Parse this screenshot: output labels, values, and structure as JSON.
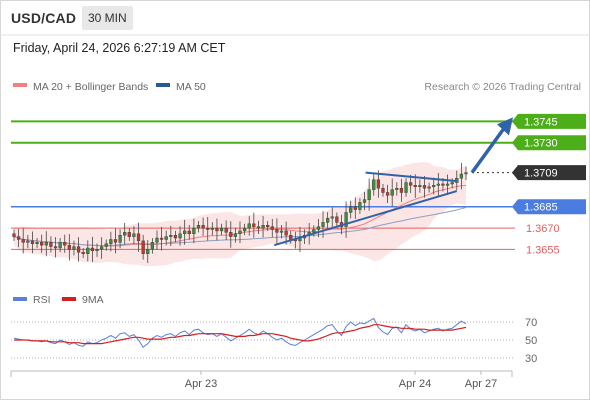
{
  "header": {
    "symbol": "USD/CAD",
    "timeframe": "30 MIN",
    "datetime": "Friday, April 24, 2026 6:27:19 AM CET"
  },
  "legend": {
    "ma20_bb": "MA 20 + Bollinger Bands",
    "ma50": "MA 50",
    "ma20_color": "#f08080",
    "ma50_color": "#2b5797"
  },
  "copyright": "Research © 2026 Trading Central",
  "colors": {
    "resistance": "#4caf1a",
    "support_blue": "#4a7ddf",
    "support_red": "#e06060",
    "current": "#333333",
    "arrow": "#2f62a8",
    "candle_up": "#3a8f3a",
    "candle_down": "#c0392b",
    "bollinger_fill": "#fbe0e0"
  },
  "chart_data": {
    "type": "candlestick",
    "ylim": [
      1.363,
      1.376
    ],
    "x_ticks": [
      "Apr 23",
      "Apr 24",
      "Apr 27"
    ],
    "levels": [
      {
        "value": 1.3745,
        "label": "1.3745",
        "kind": "resistance"
      },
      {
        "value": 1.373,
        "label": "1.3730",
        "kind": "resistance"
      },
      {
        "value": 1.3709,
        "label": "1.3709",
        "kind": "current"
      },
      {
        "value": 1.3685,
        "label": "1.3685",
        "kind": "support"
      },
      {
        "value": 1.367,
        "label": "1.3670",
        "kind": "support-red"
      },
      {
        "value": 1.3655,
        "label": "1.3655",
        "kind": "support-red"
      }
    ],
    "closes": [
      1.3664,
      1.3662,
      1.366,
      1.3661,
      1.3659,
      1.366,
      1.3658,
      1.366,
      1.3657,
      1.3656,
      1.366,
      1.3658,
      1.3655,
      1.3657,
      1.3653,
      1.3652,
      1.3656,
      1.3654,
      1.3655,
      1.3657,
      1.3659,
      1.3662,
      1.366,
      1.3665,
      1.3667,
      1.3664,
      1.3666,
      1.3661,
      1.3652,
      1.3655,
      1.366,
      1.3663,
      1.3662,
      1.3664,
      1.3665,
      1.3663,
      1.3666,
      1.3668,
      1.3666,
      1.367,
      1.3672,
      1.367,
      1.3669,
      1.367,
      1.3668,
      1.367,
      1.3667,
      1.3664,
      1.3666,
      1.3668,
      1.367,
      1.3673,
      1.3671,
      1.367,
      1.3672,
      1.3671,
      1.3669,
      1.3667,
      1.3668,
      1.3665,
      1.3662,
      1.3661,
      1.3663,
      1.3665,
      1.3667,
      1.3669,
      1.3671,
      1.3674,
      1.3677,
      1.3678,
      1.3674,
      1.3671,
      1.3681,
      1.3685,
      1.3683,
      1.3688,
      1.369,
      1.3697,
      1.3704,
      1.3698,
      1.3695,
      1.3693,
      1.3697,
      1.3698,
      1.3695,
      1.3702,
      1.37,
      1.3699,
      1.37,
      1.3698,
      1.3699,
      1.37,
      1.3701,
      1.37,
      1.3701,
      1.3702,
      1.3705,
      1.3708,
      1.3709
    ],
    "triangle_resistance": {
      "from": 1.3709,
      "to": 1.3703
    },
    "triangle_support": {
      "from": 1.3658,
      "to": 1.3696
    },
    "projection": {
      "from": 1.3709,
      "to": 1.3745
    },
    "rsi": {
      "legend_rsi": "RSI",
      "legend_ma": "9MA",
      "rsi_color": "#5a80d8",
      "ma_color": "#d22020",
      "levels": [
        70,
        50,
        30
      ],
      "ylim": [
        20,
        80
      ],
      "rsi_values": [
        52,
        51,
        50,
        50,
        49,
        49,
        48,
        49,
        47,
        46,
        50,
        48,
        45,
        47,
        44,
        43,
        48,
        46,
        47,
        50,
        52,
        55,
        52,
        57,
        58,
        54,
        56,
        50,
        42,
        46,
        52,
        55,
        53,
        56,
        57,
        54,
        58,
        60,
        56,
        61,
        62,
        58,
        56,
        57,
        54,
        57,
        53,
        49,
        52,
        55,
        58,
        62,
        58,
        56,
        60,
        57,
        53,
        50,
        52,
        48,
        45,
        44,
        47,
        50,
        53,
        56,
        59,
        62,
        66,
        67,
        60,
        55,
        65,
        70,
        66,
        69,
        68,
        71,
        74,
        64,
        59,
        56,
        63,
        64,
        58,
        67,
        62,
        60,
        62,
        58,
        60,
        62,
        63,
        60,
        62,
        63,
        67,
        71,
        68
      ],
      "ma_values": [
        50,
        50,
        50,
        50,
        49,
        49,
        49,
        49,
        48,
        48,
        48,
        48,
        47,
        47,
        47,
        46,
        46,
        46,
        46,
        46,
        47,
        48,
        49,
        50,
        51,
        52,
        53,
        53,
        52,
        51,
        51,
        51,
        51,
        52,
        53,
        53,
        54,
        55,
        55,
        56,
        57,
        57,
        57,
        57,
        57,
        57,
        56,
        55,
        54,
        54,
        54,
        55,
        55,
        56,
        57,
        57,
        57,
        56,
        55,
        54,
        52,
        51,
        50,
        49,
        49,
        50,
        51,
        53,
        55,
        57,
        58,
        58,
        59,
        60,
        61,
        63,
        64,
        65,
        67,
        67,
        66,
        65,
        64,
        64,
        63,
        63,
        63,
        62,
        62,
        62,
        61,
        61,
        61,
        61,
        61,
        61,
        62,
        63,
        64
      ]
    }
  }
}
